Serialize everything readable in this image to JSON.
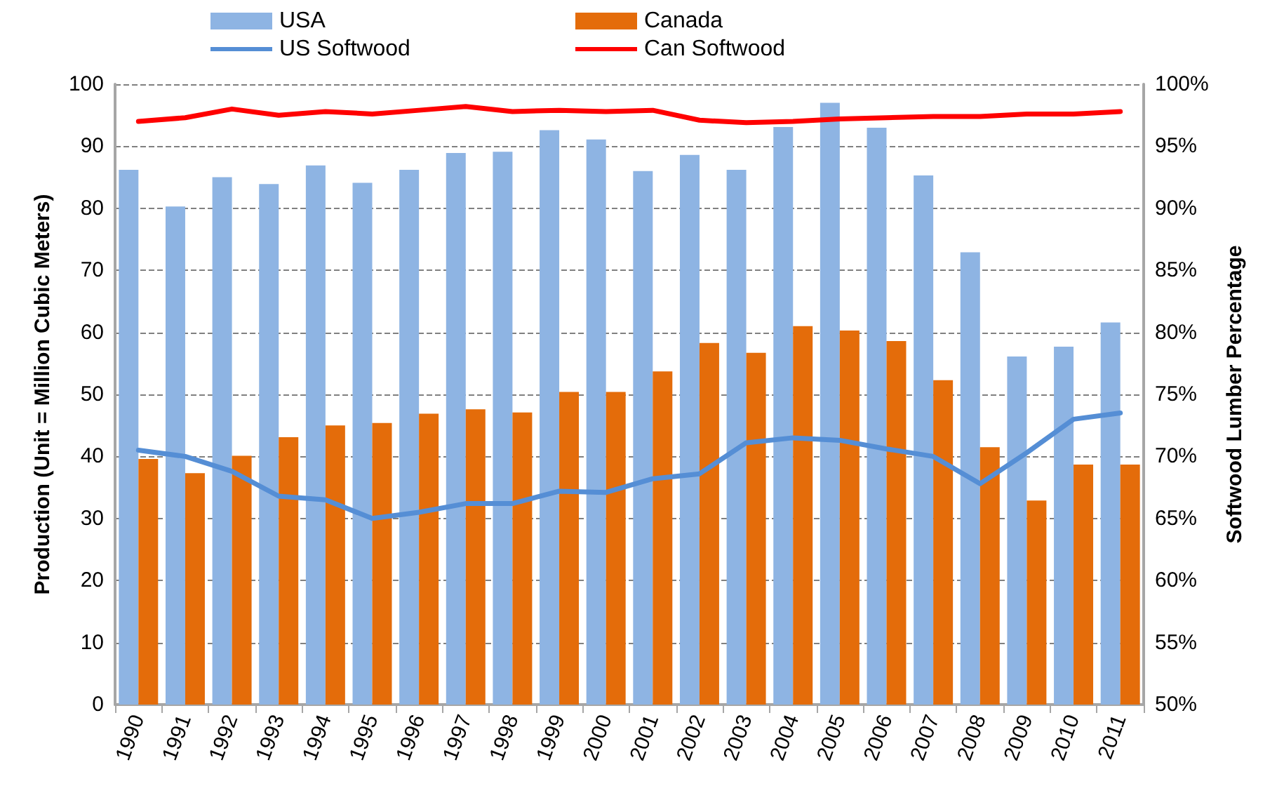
{
  "chart_data": {
    "type": "bar",
    "ylabel": "Production (Unit = Million Cubic Meters)",
    "y2label": "Softwood Lumber Percentage",
    "categories": [
      "1990",
      "1991",
      "1992",
      "1993",
      "1994",
      "1995",
      "1996",
      "1997",
      "1998",
      "1999",
      "2000",
      "2001",
      "2002",
      "2003",
      "2004",
      "2005",
      "2006",
      "2007",
      "2008",
      "2009",
      "2010",
      "2011"
    ],
    "series": [
      {
        "name": "USA",
        "color": "#8eb4e3",
        "values": [
          86.2,
          80.3,
          85,
          83.9,
          86.9,
          84.1,
          86.2,
          88.9,
          89.1,
          92.6,
          91.1,
          86,
          88.6,
          86.2,
          93.1,
          97,
          93,
          85.3,
          72.9,
          56.1,
          57.7,
          61.6
        ]
      },
      {
        "name": "Canada",
        "color": "#e46c0a",
        "values": [
          39.6,
          37.3,
          40.1,
          43.1,
          45,
          45.4,
          46.9,
          47.6,
          47.1,
          50.4,
          50.4,
          53.7,
          58.3,
          56.7,
          61,
          60.3,
          58.6,
          52.3,
          41.5,
          32.9,
          38.7,
          38.7
        ]
      },
      {
        "name": "US Softwood",
        "type": "line",
        "axis": "y2",
        "color": "#558ed5",
        "values": [
          70.5,
          70,
          68.8,
          66.8,
          66.5,
          65,
          65.5,
          66.2,
          66.2,
          67.2,
          67.1,
          68.2,
          68.6,
          71.1,
          71.5,
          71.3,
          70.6,
          70,
          67.8,
          70.3,
          73,
          73.5
        ]
      },
      {
        "name": "Can Softwood",
        "type": "line",
        "axis": "y2",
        "color": "#ff0000",
        "values": [
          97,
          97.3,
          98,
          97.5,
          97.8,
          97.6,
          97.9,
          98.2,
          97.8,
          97.9,
          97.8,
          97.9,
          97.1,
          96.9,
          97,
          97.2,
          97.3,
          97.4,
          97.4,
          97.6,
          97.6,
          97.8
        ]
      }
    ],
    "ylim": [
      0,
      100
    ],
    "yticks": [
      0,
      10,
      20,
      30,
      40,
      50,
      60,
      70,
      80,
      90,
      100
    ],
    "y2lim": [
      50,
      100
    ],
    "y2ticks": [
      {
        "value": 50,
        "label": "50%"
      },
      {
        "value": 55,
        "label": "55%"
      },
      {
        "value": 60,
        "label": "60%"
      },
      {
        "value": 65,
        "label": "65%"
      },
      {
        "value": 70,
        "label": "70%"
      },
      {
        "value": 75,
        "label": "75%"
      },
      {
        "value": 80,
        "label": "80%"
      },
      {
        "value": 85,
        "label": "85%"
      },
      {
        "value": 90,
        "label": "90%"
      },
      {
        "value": 95,
        "label": "95%"
      },
      {
        "value": 100,
        "label": "100%"
      }
    ],
    "grid": "y",
    "legend": "top",
    "marker": "none",
    "line_style": "solid"
  }
}
